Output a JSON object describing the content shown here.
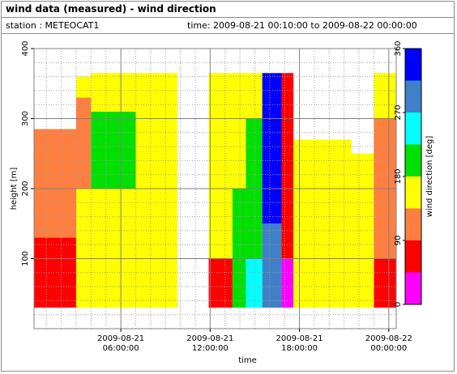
{
  "header": {
    "title": "wind data (measured) - wind direction",
    "station": "station : METEOCAT1",
    "time_range": "time: 2009-08-21 00:10:00 to 2009-08-22 00:00:00"
  },
  "chart_data": {
    "type": "heatmap",
    "xlabel": "time",
    "ylabel": "height [m]",
    "x_ticks": [
      {
        "value": 6,
        "line1": "2009-08-21",
        "line2": "06:00:00"
      },
      {
        "value": 12,
        "line1": "2009-08-21",
        "line2": "12:00:00"
      },
      {
        "value": 18,
        "line1": "2009-08-21",
        "line2": "18:00:00"
      },
      {
        "value": 24,
        "line1": "2009-08-22",
        "line2": "00:00:00"
      }
    ],
    "x_range_hours": [
      0.17,
      24.5
    ],
    "ylim": [
      0,
      400
    ],
    "y_ticks": [
      100,
      200,
      300,
      400
    ],
    "grid": true,
    "colorbar": {
      "label": "wind direction [deg]",
      "ticks": [
        0,
        90,
        180,
        270,
        360
      ],
      "bins": [
        {
          "from": 0,
          "to": 45,
          "color": "#ff00ff"
        },
        {
          "from": 45,
          "to": 90,
          "color": "#ff0000"
        },
        {
          "from": 90,
          "to": 135,
          "color": "#ff7f40"
        },
        {
          "from": 135,
          "to": 180,
          "color": "#ffff00"
        },
        {
          "from": 180,
          "to": 225,
          "color": "#00e000"
        },
        {
          "from": 225,
          "to": 270,
          "color": "#00ffff"
        },
        {
          "from": 270,
          "to": 315,
          "color": "#4080c8"
        },
        {
          "from": 315,
          "to": 360,
          "color": "#0000ff"
        }
      ]
    },
    "data_gap_hours": [
      9.8,
      11.9
    ],
    "columns": [
      {
        "t0": 0.17,
        "t1": 3.0,
        "top": 285,
        "segments": [
          {
            "to": 30,
            "bin": 2
          },
          {
            "to": 130,
            "bin": 1
          },
          {
            "to": 285,
            "bin": 2
          }
        ]
      },
      {
        "t0": 3.0,
        "t1": 4.0,
        "top": 360,
        "segments": [
          {
            "to": 30,
            "bin": 3
          },
          {
            "to": 200,
            "bin": 3
          },
          {
            "to": 330,
            "bin": 2
          },
          {
            "to": 360,
            "bin": 3
          }
        ]
      },
      {
        "t0": 4.0,
        "t1": 7.0,
        "top": 365,
        "segments": [
          {
            "to": 30,
            "bin": 3
          },
          {
            "to": 200,
            "bin": 3
          },
          {
            "to": 310,
            "bin": 4
          },
          {
            "to": 365,
            "bin": 3
          }
        ]
      },
      {
        "t0": 7.0,
        "t1": 9.8,
        "top": 365,
        "segments": [
          {
            "to": 30,
            "bin": 3
          },
          {
            "to": 365,
            "bin": 3
          }
        ]
      },
      {
        "t0": 11.9,
        "t1": 13.5,
        "top": 365,
        "segments": [
          {
            "to": 30,
            "bin": 3
          },
          {
            "to": 100,
            "bin": 1
          },
          {
            "to": 365,
            "bin": 3
          }
        ]
      },
      {
        "t0": 13.5,
        "t1": 14.4,
        "top": 365,
        "segments": [
          {
            "to": 30,
            "bin": 5
          },
          {
            "to": 200,
            "bin": 4
          },
          {
            "to": 365,
            "bin": 3
          }
        ]
      },
      {
        "t0": 14.4,
        "t1": 15.5,
        "top": 365,
        "segments": [
          {
            "to": 30,
            "bin": 5
          },
          {
            "to": 100,
            "bin": 5
          },
          {
            "to": 300,
            "bin": 4
          },
          {
            "to": 365,
            "bin": 3
          }
        ]
      },
      {
        "t0": 15.5,
        "t1": 16.8,
        "top": 365,
        "segments": [
          {
            "to": 30,
            "bin": 6
          },
          {
            "to": 150,
            "bin": 6
          },
          {
            "to": 330,
            "bin": 7
          },
          {
            "to": 365,
            "bin": 7
          }
        ]
      },
      {
        "t0": 16.8,
        "t1": 17.6,
        "top": 365,
        "segments": [
          {
            "to": 30,
            "bin": 1
          },
          {
            "to": 100,
            "bin": 0
          },
          {
            "to": 250,
            "bin": 1
          },
          {
            "to": 365,
            "bin": 1
          }
        ]
      },
      {
        "t0": 17.6,
        "t1": 21.5,
        "top": 270,
        "segments": [
          {
            "to": 30,
            "bin": 3
          },
          {
            "to": 270,
            "bin": 3
          }
        ]
      },
      {
        "t0": 21.5,
        "t1": 23.0,
        "top": 250,
        "segments": [
          {
            "to": 30,
            "bin": 3
          },
          {
            "to": 250,
            "bin": 3
          }
        ]
      },
      {
        "t0": 23.0,
        "t1": 24.5,
        "top": 365,
        "segments": [
          {
            "to": 30,
            "bin": 2
          },
          {
            "to": 100,
            "bin": 1
          },
          {
            "to": 300,
            "bin": 2
          },
          {
            "to": 365,
            "bin": 3
          }
        ]
      }
    ]
  }
}
